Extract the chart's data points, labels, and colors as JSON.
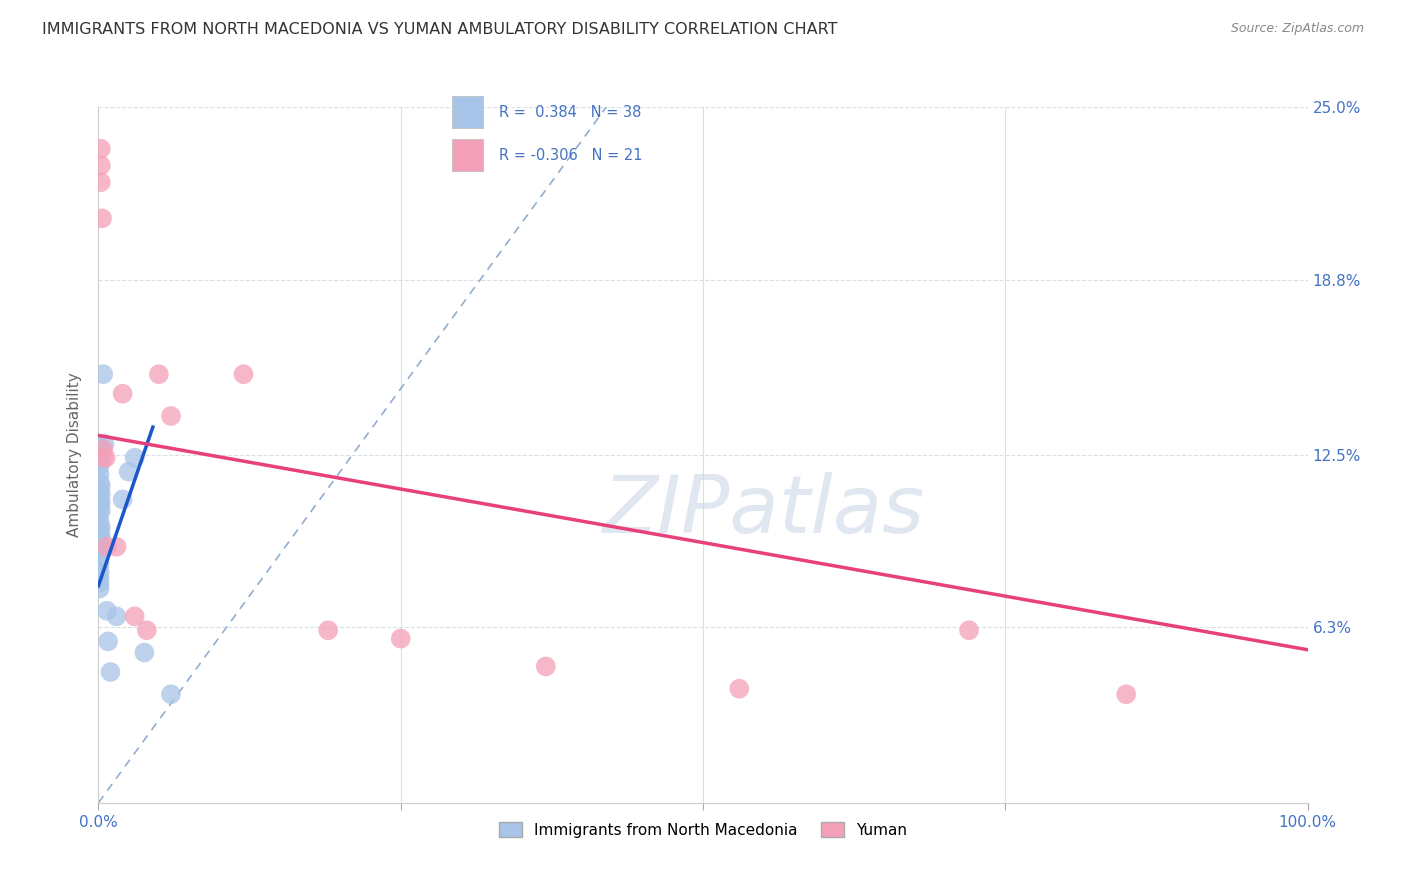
{
  "title": "IMMIGRANTS FROM NORTH MACEDONIA VS YUMAN AMBULATORY DISABILITY CORRELATION CHART",
  "source": "Source: ZipAtlas.com",
  "ylabel": "Ambulatory Disability",
  "xlim": [
    0,
    1.0
  ],
  "ylim": [
    0,
    0.25
  ],
  "yticks": [
    0.063,
    0.125,
    0.188,
    0.25
  ],
  "ytick_labels": [
    "6.3%",
    "12.5%",
    "18.8%",
    "25.0%"
  ],
  "xtick_labels_shown": [
    "0.0%",
    "100.0%"
  ],
  "blue_color": "#a8c4e8",
  "pink_color": "#f4a0b8",
  "blue_line_color": "#1a56cc",
  "pink_line_color": "#e8407a",
  "dashed_line_color": "#90aed0",
  "label_color": "#4472c4",
  "watermark_color": "#ccd8e8",
  "background_color": "#ffffff",
  "grid_color": "#d8dfe8",
  "blue_scatter": [
    [
      0.001,
      0.128
    ],
    [
      0.001,
      0.124
    ],
    [
      0.001,
      0.121
    ],
    [
      0.001,
      0.118
    ],
    [
      0.001,
      0.115
    ],
    [
      0.001,
      0.112
    ],
    [
      0.001,
      0.109
    ],
    [
      0.001,
      0.107
    ],
    [
      0.001,
      0.104
    ],
    [
      0.001,
      0.101
    ],
    [
      0.001,
      0.099
    ],
    [
      0.001,
      0.096
    ],
    [
      0.001,
      0.093
    ],
    [
      0.001,
      0.091
    ],
    [
      0.001,
      0.088
    ],
    [
      0.001,
      0.086
    ],
    [
      0.001,
      0.083
    ],
    [
      0.001,
      0.081
    ],
    [
      0.001,
      0.079
    ],
    [
      0.001,
      0.077
    ],
    [
      0.002,
      0.127
    ],
    [
      0.002,
      0.114
    ],
    [
      0.002,
      0.111
    ],
    [
      0.002,
      0.108
    ],
    [
      0.002,
      0.105
    ],
    [
      0.002,
      0.099
    ],
    [
      0.002,
      0.096
    ],
    [
      0.004,
      0.154
    ],
    [
      0.005,
      0.129
    ],
    [
      0.007,
      0.069
    ],
    [
      0.008,
      0.058
    ],
    [
      0.01,
      0.047
    ],
    [
      0.015,
      0.067
    ],
    [
      0.02,
      0.109
    ],
    [
      0.025,
      0.119
    ],
    [
      0.03,
      0.124
    ],
    [
      0.038,
      0.054
    ],
    [
      0.06,
      0.039
    ]
  ],
  "pink_scatter": [
    [
      0.002,
      0.235
    ],
    [
      0.002,
      0.229
    ],
    [
      0.002,
      0.223
    ],
    [
      0.003,
      0.21
    ],
    [
      0.004,
      0.127
    ],
    [
      0.004,
      0.124
    ],
    [
      0.006,
      0.124
    ],
    [
      0.007,
      0.092
    ],
    [
      0.015,
      0.092
    ],
    [
      0.02,
      0.147
    ],
    [
      0.03,
      0.067
    ],
    [
      0.04,
      0.062
    ],
    [
      0.05,
      0.154
    ],
    [
      0.06,
      0.139
    ],
    [
      0.12,
      0.154
    ],
    [
      0.19,
      0.062
    ],
    [
      0.25,
      0.059
    ],
    [
      0.37,
      0.049
    ],
    [
      0.53,
      0.041
    ],
    [
      0.72,
      0.062
    ],
    [
      0.85,
      0.039
    ]
  ],
  "blue_line_x": [
    0.0,
    0.045
  ],
  "blue_line_y": [
    0.078,
    0.135
  ],
  "pink_line_x": [
    0.0,
    1.0
  ],
  "pink_line_y": [
    0.132,
    0.055
  ],
  "dashed_line_x": [
    0.0,
    0.42
  ],
  "dashed_line_y": [
    0.0,
    0.25
  ]
}
